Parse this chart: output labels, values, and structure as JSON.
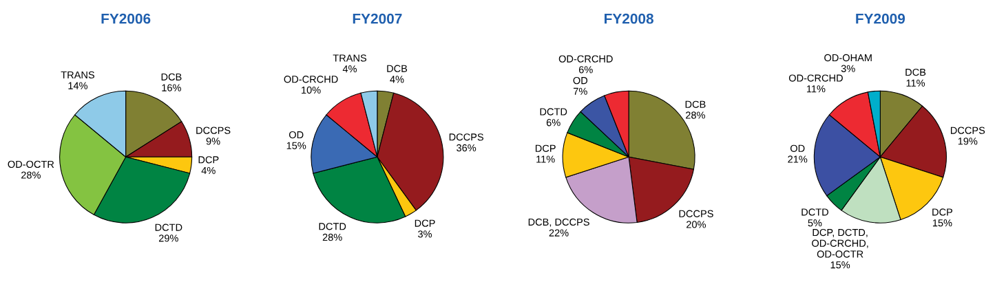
{
  "chart_data": [
    {
      "type": "pie",
      "title": "FY2006",
      "categories": [
        "DCB",
        "DCCPS",
        "DCP",
        "DCTD",
        "OD-OCTR",
        "TRANS"
      ],
      "values": [
        16,
        9,
        4,
        29,
        28,
        14
      ],
      "value_labels": [
        "16%",
        "9%",
        "4%",
        "29%",
        "28%",
        "14%"
      ],
      "colors": [
        "#808033",
        "#951b1e",
        "#fdc70f",
        "#008443",
        "#84c341",
        "#8ecae8"
      ]
    },
    {
      "type": "pie",
      "title": "FY2007",
      "categories": [
        "DCB",
        "DCCPS",
        "DCP",
        "DCTD",
        "OD",
        "OD-CRCHD",
        "TRANS"
      ],
      "values": [
        4,
        36,
        3,
        28,
        15,
        10,
        4
      ],
      "value_labels": [
        "4%",
        "36%",
        "3%",
        "28%",
        "15%",
        "10%",
        "4%"
      ],
      "colors": [
        "#808033",
        "#951b1e",
        "#fdc70f",
        "#008443",
        "#3a6ab4",
        "#ed2a32",
        "#8ecae8"
      ]
    },
    {
      "type": "pie",
      "title": "FY2008",
      "categories": [
        "DCB",
        "DCCPS",
        "DCB, DCCPS",
        "DCP",
        "DCTD",
        "OD",
        "OD-CRCHD"
      ],
      "values": [
        28,
        20,
        22,
        11,
        6,
        7,
        6
      ],
      "value_labels": [
        "28%",
        "20%",
        "22%",
        "11%",
        "6%",
        "7%",
        "6%"
      ],
      "colors": [
        "#808033",
        "#951b1e",
        "#c59fca",
        "#fdc70f",
        "#008443",
        "#3b55a4",
        "#ed2a32"
      ]
    },
    {
      "type": "pie",
      "title": "FY2009",
      "categories": [
        "DCB",
        "DCCPS",
        "DCP",
        "DCP, DCTD,\nOD-CRCHD,\nOD-OCTR",
        "DCTD",
        "OD",
        "OD-CRCHD",
        "OD-OHAM"
      ],
      "values": [
        11,
        19,
        15,
        15,
        5,
        21,
        11,
        3
      ],
      "value_labels": [
        "11%",
        "19%",
        "15%",
        "15%",
        "5%",
        "21%",
        "11%",
        "3%"
      ],
      "colors": [
        "#808033",
        "#951b1e",
        "#fdc70f",
        "#bfe0c0",
        "#008443",
        "#3c50a3",
        "#ed2a32",
        "#00aecb"
      ]
    }
  ]
}
